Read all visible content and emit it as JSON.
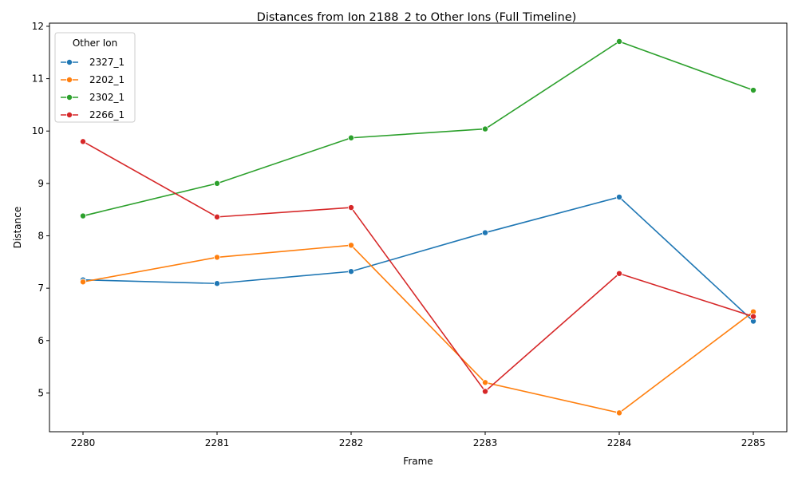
{
  "chart_data": {
    "type": "line",
    "title": "Distances from Ion 2188_2 to Other Ions (Full Timeline)",
    "xlabel": "Frame",
    "ylabel": "Distance",
    "x": [
      2280,
      2281,
      2282,
      2283,
      2284,
      2285
    ],
    "x_ticks": [
      "2280",
      "2281",
      "2282",
      "2283",
      "2284",
      "2285"
    ],
    "xlim": [
      2279.75,
      2285.25
    ],
    "ylim": [
      4.26,
      12.06
    ],
    "y_ticks": [
      5,
      6,
      7,
      8,
      9,
      10,
      11,
      12
    ],
    "y_tick_labels": [
      "5",
      "6",
      "7",
      "8",
      "9",
      "10",
      "11",
      "12"
    ],
    "legend_title": "Other Ion",
    "legend_position": "top-left",
    "grid": false,
    "series": [
      {
        "name": "2327_1",
        "color": "#1f77b4",
        "values": [
          7.16,
          7.09,
          7.32,
          8.06,
          8.74,
          6.37
        ]
      },
      {
        "name": "2202_1",
        "color": "#ff7f0e",
        "values": [
          7.12,
          7.59,
          7.82,
          5.2,
          4.62,
          6.55
        ]
      },
      {
        "name": "2302_1",
        "color": "#2ca02c",
        "values": [
          8.38,
          9.0,
          9.87,
          10.04,
          11.71,
          10.78
        ]
      },
      {
        "name": "2266_1",
        "color": "#d62728",
        "values": [
          9.8,
          8.36,
          8.54,
          5.03,
          7.28,
          6.46
        ]
      }
    ]
  }
}
